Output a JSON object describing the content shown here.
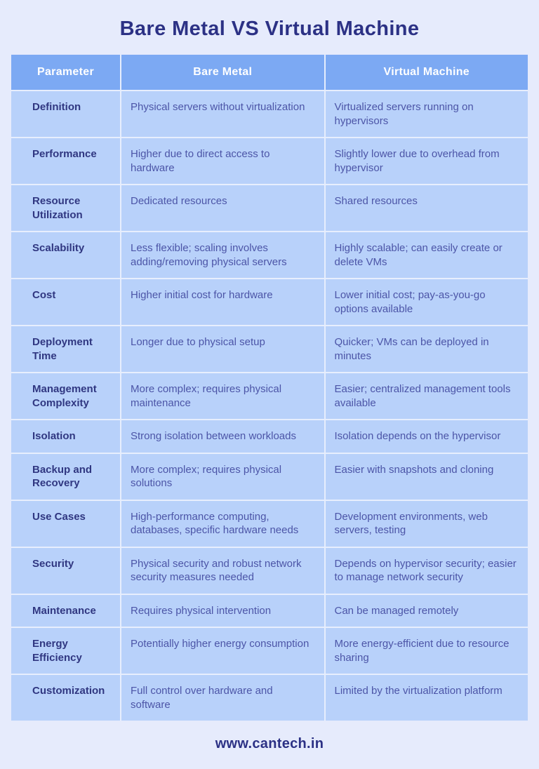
{
  "title": "Bare Metal VS Virtual Machine",
  "table": {
    "headers": [
      "Parameter",
      "Bare Metal",
      "Virtual Machine"
    ],
    "rows": [
      {
        "parameter": "Definition",
        "bare_metal": "Physical servers without virtualization",
        "virtual_machine": "Virtualized servers running on hypervisors"
      },
      {
        "parameter": "Performance",
        "bare_metal": "Higher due to direct access to hardware",
        "virtual_machine": "Slightly lower due to overhead from hypervisor"
      },
      {
        "parameter": "Resource Utilization",
        "bare_metal": "Dedicated resources",
        "virtual_machine": "Shared resources"
      },
      {
        "parameter": "Scalability",
        "bare_metal": "Less flexible; scaling involves adding/removing physical servers",
        "virtual_machine": "Highly scalable; can easily create or delete VMs"
      },
      {
        "parameter": "Cost",
        "bare_metal": "Higher initial cost for hardware",
        "virtual_machine": "Lower initial cost; pay-as-you-go options available"
      },
      {
        "parameter": "Deployment Time",
        "bare_metal": "Longer due to physical setup",
        "virtual_machine": "Quicker; VMs can be deployed in minutes"
      },
      {
        "parameter": "Management Complexity",
        "bare_metal": "More complex; requires physical maintenance",
        "virtual_machine": "Easier; centralized management tools available"
      },
      {
        "parameter": "Isolation",
        "bare_metal": "Strong isolation between workloads",
        "virtual_machine": "Isolation depends on the hypervisor"
      },
      {
        "parameter": "Backup and Recovery",
        "bare_metal": "More complex; requires physical solutions",
        "virtual_machine": "Easier with snapshots and cloning"
      },
      {
        "parameter": "Use Cases",
        "bare_metal": "High-performance computing, databases, specific hardware needs",
        "virtual_machine": "Development environments, web servers, testing"
      },
      {
        "parameter": "Security",
        "bare_metal": "Physical security and robust network security measures needed",
        "virtual_machine": "Depends on hypervisor security; easier to manage network security"
      },
      {
        "parameter": "Maintenance",
        "bare_metal": "Requires physical intervention",
        "virtual_machine": "Can be managed remotely"
      },
      {
        "parameter": "Energy Efficiency",
        "bare_metal": "Potentially higher energy consumption",
        "virtual_machine": "More energy-efficient due to resource sharing"
      },
      {
        "parameter": "Customization",
        "bare_metal": "Full control over hardware and software",
        "virtual_machine": "Limited by the virtualization platform"
      }
    ]
  },
  "footer": {
    "website": "www.cantech.in"
  },
  "colors": {
    "bg": "#e6ebfc",
    "line": "#e7eefd",
    "header_bg": "#7ca9f3",
    "cell_bg": "#b8d1fa",
    "title": "#2c3185",
    "param_text": "#303781",
    "body_text": "#4c55a7",
    "header_text": "#ffffff"
  }
}
